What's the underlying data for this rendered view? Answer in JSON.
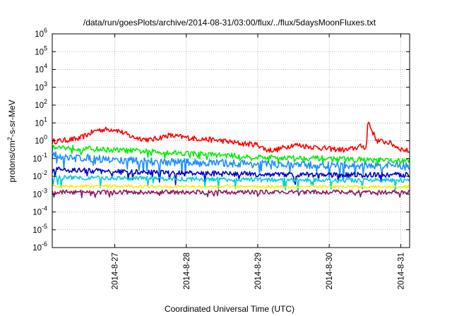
{
  "chart_data": {
    "type": "line",
    "title": "/data/run/goesPlots/archive/2014-08-31/03:00/flux/../flux/5daysMoonFluxes.txt",
    "xlabel": "Coordinated Universal Time (UTC)",
    "ylabel": "protons/cm²-s-sr-MeV",
    "yscale": "log",
    "ylim": [
      1e-06,
      1000000.0
    ],
    "xlim": [
      "2014-08-26 03:00",
      "2014-08-31 03:00"
    ],
    "x_ticks": [
      {
        "date": "2014-08-27 00:00",
        "label": "2014-8-27"
      },
      {
        "date": "2014-08-28 00:00",
        "label": "2014-8-28"
      },
      {
        "date": "2014-08-29 00:00",
        "label": "2014-8-29"
      },
      {
        "date": "2014-08-30 00:00",
        "label": "2014-8-30"
      },
      {
        "date": "2014-08-31 00:00",
        "label": "2014-8-31"
      }
    ],
    "y_ticks": [
      {
        "exp": "6"
      },
      {
        "exp": "5"
      },
      {
        "exp": "4"
      },
      {
        "exp": "3"
      },
      {
        "exp": "2"
      },
      {
        "exp": "1"
      },
      {
        "exp": "0"
      },
      {
        "exp": "-1"
      },
      {
        "exp": "-2"
      },
      {
        "exp": "-3"
      },
      {
        "exp": "-4"
      },
      {
        "exp": "-5"
      },
      {
        "exp": "-6"
      }
    ],
    "grid": true,
    "legend": "none",
    "series": [
      {
        "color": "#ff0000",
        "noise": 0.15,
        "dips": 0.0,
        "points": [
          [
            "2014-08-26 03:00",
            0.9
          ],
          [
            "2014-08-26 12:00",
            1.3
          ],
          [
            "2014-08-26 18:00",
            4.0
          ],
          [
            "2014-08-27 00:00",
            4.5
          ],
          [
            "2014-08-27 06:00",
            1.6
          ],
          [
            "2014-08-27 12:00",
            1.1
          ],
          [
            "2014-08-27 18:00",
            2.0
          ],
          [
            "2014-08-28 00:00",
            1.5
          ],
          [
            "2014-08-28 12:00",
            1.0
          ],
          [
            "2014-08-28 18:00",
            0.7
          ],
          [
            "2014-08-29 00:00",
            0.6
          ],
          [
            "2014-08-29 03:00",
            0.3
          ],
          [
            "2014-08-29 06:00",
            0.3
          ],
          [
            "2014-08-29 12:00",
            0.6
          ],
          [
            "2014-08-30 00:00",
            0.35
          ],
          [
            "2014-08-30 06:00",
            0.3
          ],
          [
            "2014-08-30 11:00",
            0.5
          ],
          [
            "2014-08-30 12:30",
            0.4
          ],
          [
            "2014-08-30 13:00",
            15
          ],
          [
            "2014-08-30 14:00",
            5
          ],
          [
            "2014-08-30 16:00",
            1.0
          ],
          [
            "2014-08-30 20:00",
            0.8
          ],
          [
            "2014-08-31 00:00",
            0.35
          ],
          [
            "2014-08-31 03:00",
            0.25
          ]
        ]
      },
      {
        "color": "#00ee00",
        "noise": 0.15,
        "dips": 0.25,
        "points": [
          [
            "2014-08-26 03:00",
            0.45
          ],
          [
            "2014-08-27 00:00",
            0.3
          ],
          [
            "2014-08-28 00:00",
            0.2
          ],
          [
            "2014-08-29 00:00",
            0.12
          ],
          [
            "2014-08-30 00:00",
            0.1
          ],
          [
            "2014-08-31 03:00",
            0.07
          ]
        ]
      },
      {
        "color": "#1e90ff",
        "noise": 0.22,
        "dips": 0.5,
        "points": [
          [
            "2014-08-26 03:00",
            0.15
          ],
          [
            "2014-08-27 00:00",
            0.08
          ],
          [
            "2014-08-28 00:00",
            0.06
          ],
          [
            "2014-08-29 00:00",
            0.05
          ],
          [
            "2014-08-30 00:00",
            0.04
          ],
          [
            "2014-08-31 03:00",
            0.04
          ]
        ]
      },
      {
        "color": "#0000cd",
        "noise": 0.15,
        "dips": 0.35,
        "points": [
          [
            "2014-08-26 03:00",
            0.025
          ],
          [
            "2014-08-27 00:00",
            0.018
          ],
          [
            "2014-08-28 00:00",
            0.015
          ],
          [
            "2014-08-29 00:00",
            0.013
          ],
          [
            "2014-08-30 00:00",
            0.012
          ],
          [
            "2014-08-31 03:00",
            0.012
          ]
        ]
      },
      {
        "color": "#00ced1",
        "noise": 0.12,
        "dips": 0.4,
        "points": [
          [
            "2014-08-26 03:00",
            0.009
          ],
          [
            "2014-08-27 00:00",
            0.008
          ],
          [
            "2014-08-28 00:00",
            0.007
          ],
          [
            "2014-08-29 00:00",
            0.0065
          ],
          [
            "2014-08-30 00:00",
            0.006
          ],
          [
            "2014-08-31 03:00",
            0.006
          ]
        ]
      },
      {
        "color": "#ffee00",
        "noise": 0.08,
        "dips": 0.0,
        "points": [
          [
            "2014-08-26 03:00",
            0.0028
          ],
          [
            "2014-08-28 00:00",
            0.0027
          ],
          [
            "2014-08-31 03:00",
            0.0026
          ]
        ]
      },
      {
        "color": "#8b1c62",
        "noise": 0.12,
        "dips": 0.15,
        "points": [
          [
            "2014-08-26 03:00",
            0.0013
          ],
          [
            "2014-08-28 00:00",
            0.0013
          ],
          [
            "2014-08-31 03:00",
            0.0013
          ]
        ]
      }
    ]
  }
}
